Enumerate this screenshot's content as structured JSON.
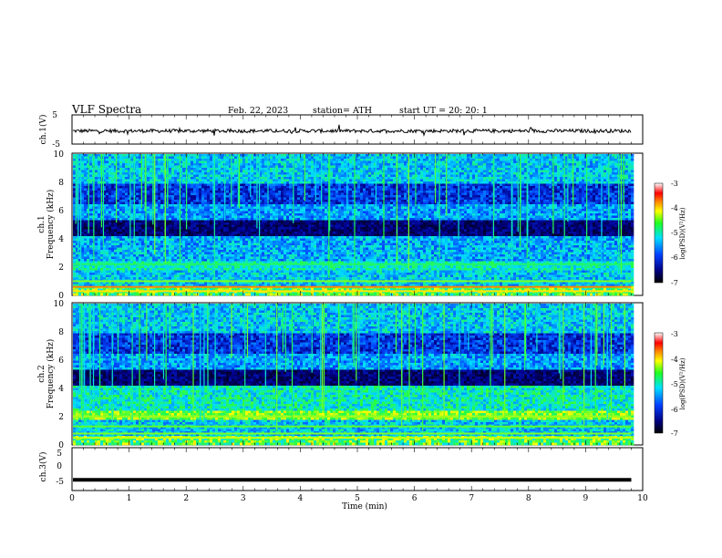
{
  "header": {
    "title": "VLF  Spectra",
    "date": "Feb. 22, 2023",
    "station": "station= ATH",
    "start": "start  UT  =   20: 20: 1"
  },
  "chart_data": [
    {
      "type": "line",
      "name": "ch1-waveform",
      "ylabel": "ch.1(V)",
      "ylim": [
        -5,
        5
      ],
      "yticks": [
        "5",
        "-5"
      ],
      "xlim": [
        0,
        10
      ],
      "baseline": -0.5
    },
    {
      "type": "heatmap",
      "name": "ch1-spectrogram",
      "ylabel": "ch.1\nFrequency  (kHz)",
      "ylim": [
        0,
        10
      ],
      "yticks": [
        "0",
        "2",
        "4",
        "6",
        "8",
        "10"
      ],
      "xlim": [
        0,
        10
      ],
      "data_end_min": 9.8,
      "colorbar": {
        "label": "log(PSD)(V²/Hz)",
        "range": [
          -7,
          -3
        ],
        "ticks": [
          "-3",
          "-4",
          "-5",
          "-6",
          "-7"
        ]
      }
    },
    {
      "type": "heatmap",
      "name": "ch2-spectrogram",
      "ylabel": "ch.2\nFrequency  (kHz)",
      "ylim": [
        0,
        10
      ],
      "yticks": [
        "0",
        "2",
        "4",
        "6",
        "8",
        "10"
      ],
      "xlim": [
        0,
        10
      ],
      "data_end_min": 9.8,
      "colorbar": {
        "label": "log(PSD)(V²/Hz)",
        "range": [
          -7,
          -3
        ],
        "ticks": [
          "-3",
          "-4",
          "-5",
          "-6",
          "-7"
        ]
      }
    },
    {
      "type": "line",
      "name": "ch3-waveform",
      "ylabel": "ch.3(V)",
      "ylim": [
        -5,
        5
      ],
      "yticks": [
        "5",
        "0",
        "-5"
      ],
      "xlim": [
        0,
        10
      ],
      "baseline": -2.5,
      "xlabel": "Time  (min)",
      "xticks": [
        "0",
        "1",
        "2",
        "3",
        "4",
        "5",
        "6",
        "7",
        "8",
        "9",
        "10"
      ]
    }
  ],
  "colors": {
    "spectro_low": "#000000",
    "spectro_mid": "#0044ff",
    "spectro_high": "#00ffff",
    "spectro_peak": "#ff0000",
    "trace": "#000000"
  }
}
